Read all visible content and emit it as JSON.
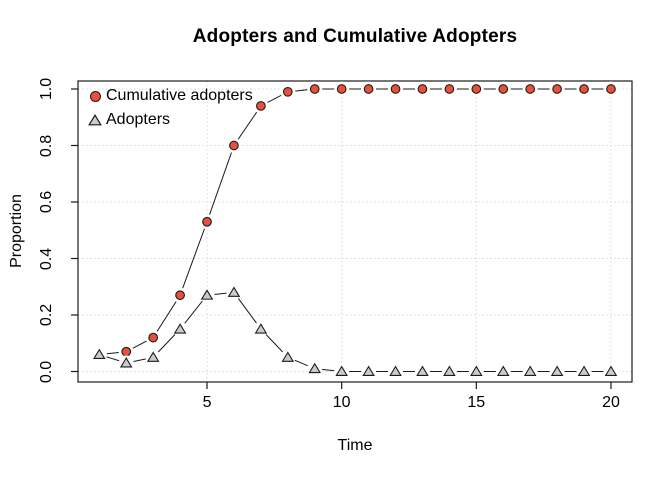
{
  "page": {
    "background": "#FFFFFF"
  },
  "chart_data": {
    "type": "line",
    "title": "Adopters and Cumulative Adopters",
    "xlabel": "Time",
    "ylabel": "Proportion",
    "xlim": [
      1,
      20
    ],
    "ylim": [
      0.0,
      1.0
    ],
    "grid": "dotted",
    "legend_position": "top-left",
    "line_style": "points-and-segments",
    "x": [
      1,
      2,
      3,
      4,
      5,
      6,
      7,
      8,
      9,
      10,
      11,
      12,
      13,
      14,
      15,
      16,
      17,
      18,
      19,
      20
    ],
    "x_ticks": [
      5,
      10,
      15,
      20
    ],
    "x_tick_labels": [
      "5",
      "10",
      "15",
      "20"
    ],
    "y_ticks": [
      0.0,
      0.2,
      0.4,
      0.6,
      0.8,
      1.0
    ],
    "y_tick_labels": [
      "0.0",
      "0.2",
      "0.4",
      "0.6",
      "0.8",
      "1.0"
    ],
    "series": [
      {
        "name": "Cumulative adopters",
        "marker": "circle",
        "fill": "#E8503C",
        "values": [
          0.06,
          0.07,
          0.12,
          0.27,
          0.53,
          0.8,
          0.94,
          0.99,
          1.0,
          1.0,
          1.0,
          1.0,
          1.0,
          1.0,
          1.0,
          1.0,
          1.0,
          1.0,
          1.0,
          1.0
        ]
      },
      {
        "name": "Adopters",
        "marker": "triangle",
        "fill": "#CBCBCB",
        "values": [
          0.06,
          0.03,
          0.05,
          0.15,
          0.27,
          0.28,
          0.15,
          0.05,
          0.01,
          0.0,
          0.0,
          0.0,
          0.0,
          0.0,
          0.0,
          0.0,
          0.0,
          0.0,
          0.0,
          0.0
        ]
      }
    ]
  },
  "colors": {
    "line": "#1A1A1A",
    "marker_stroke": "#1A1A1A",
    "grid": "#D8D8D8",
    "box": "#1A1A1A",
    "cumulative_fill": "#E8503C",
    "adopters_fill": "#CBCBCB"
  }
}
